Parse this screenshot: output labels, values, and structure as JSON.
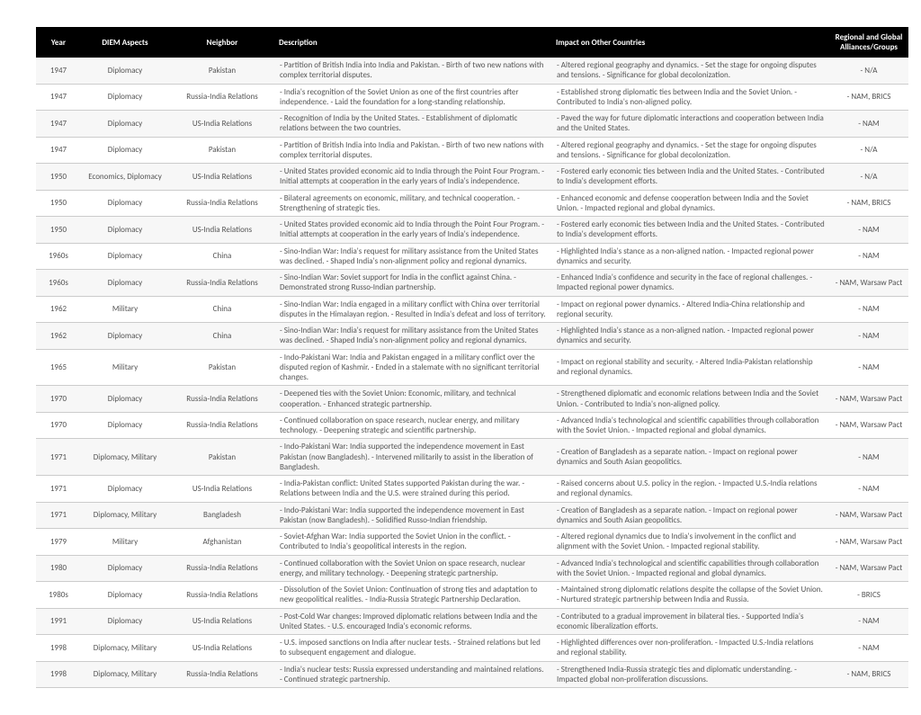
{
  "table": {
    "columns": [
      "Year",
      "DIEM Aspects",
      "Neighbor",
      "Description",
      "Impact on Other Countries",
      "Regional and Global Alliances/Groups"
    ],
    "column_classes": [
      "col-year",
      "col-aspect",
      "col-neigh",
      "col-desc",
      "col-impact",
      "col-alli"
    ],
    "header_bg": "#000000",
    "header_fg": "#ffffff",
    "row_alt_bg": "#f7f7f7",
    "border_color": "#cccccc",
    "font_size_pt": 7,
    "rows": [
      [
        "1947",
        "Diplomacy",
        "Pakistan",
        "- Partition of British India into India and Pakistan. - Birth of two new nations with complex territorial disputes.",
        "- Altered regional geography and dynamics. - Set the stage for ongoing disputes and tensions. - Significance for global decolonization.",
        "- N/A"
      ],
      [
        "1947",
        "Diplomacy",
        "Russia-India Relations",
        "- India's recognition of the Soviet Union as one of the first countries after independence. - Laid the foundation for a long-standing relationship.",
        "- Established strong diplomatic ties between India and the Soviet Union. - Contributed to India's non-aligned policy.",
        "- NAM, BRICS"
      ],
      [
        "1947",
        "Diplomacy",
        "US-India Relations",
        "- Recognition of India by the United States. - Establishment of diplomatic relations between the two countries.",
        "- Paved the way for future diplomatic interactions and cooperation between India and the United States.",
        "- NAM"
      ],
      [
        "1947",
        "Diplomacy",
        "Pakistan",
        "- Partition of British India into India and Pakistan. - Birth of two new nations with complex territorial disputes.",
        "- Altered regional geography and dynamics. - Set the stage for ongoing disputes and tensions. - Significance for global decolonization.",
        "- N/A"
      ],
      [
        "1950",
        "Economics, Diplomacy",
        "US-India Relations",
        "- United States provided economic aid to India through the Point Four Program. - Initial attempts at cooperation in the early years of India's independence.",
        "- Fostered early economic ties between India and the United States. - Contributed to India's development efforts.",
        "- N/A"
      ],
      [
        "1950",
        "Diplomacy",
        "Russia-India Relations",
        "- Bilateral agreements on economic, military, and technical cooperation. - Strengthening of strategic ties.",
        "- Enhanced economic and defense cooperation between India and the Soviet Union. - Impacted regional and global dynamics.",
        "- NAM, BRICS"
      ],
      [
        "1950",
        "Diplomacy",
        "US-India Relations",
        "- United States provided economic aid to India through the Point Four Program. - Initial attempts at cooperation in the early years of India's independence.",
        "- Fostered early economic ties between India and the United States. - Contributed to India's development efforts.",
        "- NAM"
      ],
      [
        "1960s",
        "Diplomacy",
        "China",
        "- Sino-Indian War: India's request for military assistance from the United States was declined. - Shaped India's non-alignment policy and regional dynamics.",
        "- Highlighted India's stance as a non-aligned nation. - Impacted regional power dynamics and security.",
        "- NAM"
      ],
      [
        "1960s",
        "Diplomacy",
        "Russia-India Relations",
        "- Sino-Indian War: Soviet support for India in the conflict against China. - Demonstrated strong Russo-Indian partnership.",
        "- Enhanced India's confidence and security in the face of regional challenges. - Impacted regional power dynamics.",
        "- NAM, Warsaw Pact"
      ],
      [
        "1962",
        "Military",
        "China",
        "- Sino-Indian War: India engaged in a military conflict with China over territorial disputes in the Himalayan region. - Resulted in India's defeat and loss of territory.",
        "- Impact on regional power dynamics. - Altered India-China relationship and regional security.",
        "- NAM"
      ],
      [
        "1962",
        "Diplomacy",
        "China",
        "- Sino-Indian War: India's request for military assistance from the United States was declined. - Shaped India's non-alignment policy and regional dynamics.",
        "- Highlighted India's stance as a non-aligned nation. - Impacted regional power dynamics and security.",
        "- NAM"
      ],
      [
        "1965",
        "Military",
        "Pakistan",
        "- Indo-Pakistani War: India and Pakistan engaged in a military conflict over the disputed region of Kashmir. - Ended in a stalemate with no significant territorial changes.",
        "- Impact on regional stability and security. - Altered India-Pakistan relationship and regional dynamics.",
        "- NAM"
      ],
      [
        "1970",
        "Diplomacy",
        "Russia-India Relations",
        "- Deepened ties with the Soviet Union: Economic, military, and technical cooperation. - Enhanced strategic partnership.",
        "- Strengthened diplomatic and economic relations between India and the Soviet Union. - Contributed to India's non-aligned policy.",
        "- NAM, Warsaw Pact"
      ],
      [
        "1970",
        "Diplomacy",
        "Russia-India Relations",
        "- Continued collaboration on space research, nuclear energy, and military technology. - Deepening strategic and scientific partnership.",
        "- Advanced India's technological and scientific capabilities through collaboration with the Soviet Union. - Impacted regional and global dynamics.",
        "- NAM, Warsaw Pact"
      ],
      [
        "1971",
        "Diplomacy, Military",
        "Pakistan",
        "- Indo-Pakistani War: India supported the independence movement in East Pakistan (now Bangladesh). - Intervened militarily to assist in the liberation of Bangladesh.",
        "- Creation of Bangladesh as a separate nation. - Impact on regional power dynamics and South Asian geopolitics.",
        "- NAM"
      ],
      [
        "1971",
        "Diplomacy",
        "US-India Relations",
        "- India-Pakistan conflict: United States supported Pakistan during the war. - Relations between India and the U.S. were strained during this period.",
        "- Raised concerns about U.S. policy in the region. - Impacted U.S.-India relations and regional dynamics.",
        "- NAM"
      ],
      [
        "1971",
        "Diplomacy, Military",
        "Bangladesh",
        "- Indo-Pakistani War: India supported the independence movement in East Pakistan (now Bangladesh). - Solidified Russo-Indian friendship.",
        "- Creation of Bangladesh as a separate nation. - Impact on regional power dynamics and South Asian geopolitics.",
        "- NAM, Warsaw Pact"
      ],
      [
        "1979",
        "Military",
        "Afghanistan",
        "- Soviet-Afghan War: India supported the Soviet Union in the conflict. - Contributed to India's geopolitical interests in the region.",
        "- Altered regional dynamics due to India's involvement in the conflict and alignment with the Soviet Union. - Impacted regional stability.",
        "- NAM, Warsaw Pact"
      ],
      [
        "1980",
        "Diplomacy",
        "Russia-India Relations",
        "- Continued collaboration with the Soviet Union on space research, nuclear energy, and military technology. - Deepening strategic partnership.",
        "- Advanced India's technological and scientific capabilities through collaboration with the Soviet Union. - Impacted regional and global dynamics.",
        "- NAM, Warsaw Pact"
      ],
      [
        "1980s",
        "Diplomacy",
        "Russia-India Relations",
        "- Dissolution of the Soviet Union: Continuation of strong ties and adaptation to new geopolitical realities. - India-Russia Strategic Partnership Declaration.",
        "- Maintained strong diplomatic relations despite the collapse of the Soviet Union. - Nurtured strategic partnership between India and Russia.",
        "- BRICS"
      ],
      [
        "1991",
        "Diplomacy",
        "US-India Relations",
        "- Post-Cold War changes: Improved diplomatic relations between India and the United States. - U.S. encouraged India's economic reforms.",
        "- Contributed to a gradual improvement in bilateral ties. - Supported India's economic liberalization efforts.",
        "- NAM"
      ],
      [
        "1998",
        "Diplomacy, Military",
        "US-India Relations",
        "- U.S. imposed sanctions on India after nuclear tests. - Strained relations but led to subsequent engagement and dialogue.",
        "- Highlighted differences over non-proliferation. - Impacted U.S.-India relations and regional stability.",
        "- NAM"
      ],
      [
        "1998",
        "Diplomacy, Military",
        "Russia-India Relations",
        "- India's nuclear tests: Russia expressed understanding and maintained relations. - Continued strategic partnership.",
        "- Strengthened India-Russia strategic ties and diplomatic understanding. - Impacted global non-proliferation discussions.",
        "- NAM, BRICS"
      ]
    ]
  }
}
